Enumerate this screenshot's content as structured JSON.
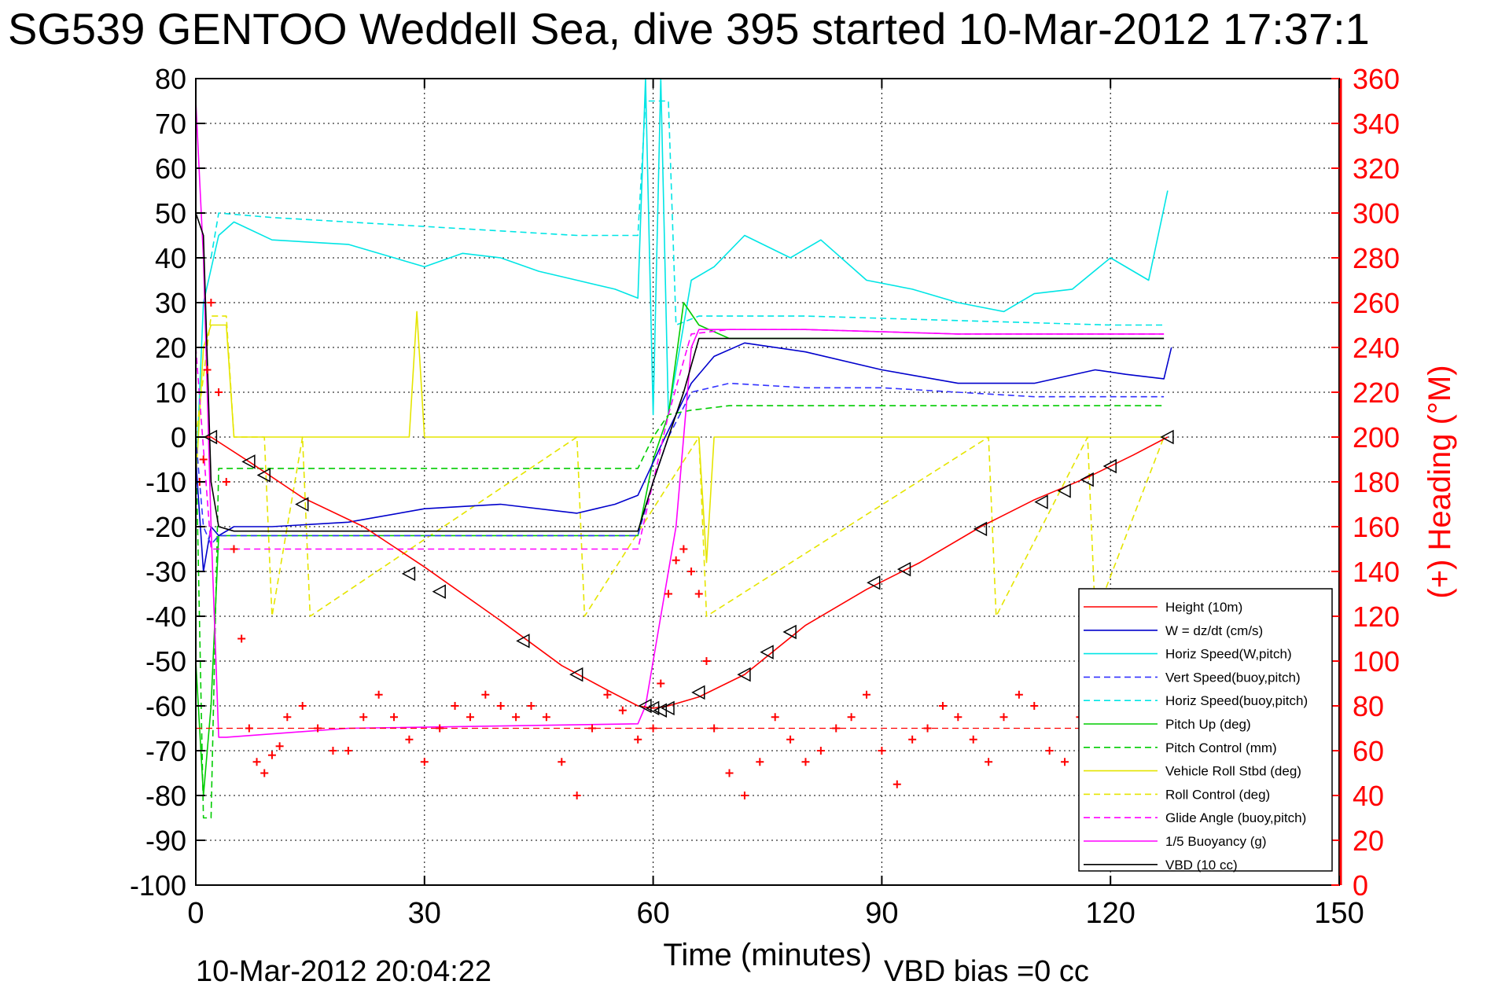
{
  "chart_data": {
    "type": "line",
    "title": "SG539 GENTOO Weddell Sea, dive 395 started 10-Mar-2012 17:37:1",
    "xlabel": "Time (minutes)",
    "ylabel_right": "(+) Heading (°M)",
    "footer_left": "10-Mar-2012 20:04:22",
    "footer_right": "VBD bias =0 cc",
    "xlim": [
      0,
      150
    ],
    "ylim_left": [
      -100,
      80
    ],
    "ylim_right": [
      0,
      360
    ],
    "x_ticks": [
      "0",
      "30",
      "60",
      "90",
      "120",
      "150"
    ],
    "y_ticks_left": [
      "80",
      "70",
      "60",
      "50",
      "40",
      "30",
      "20",
      "10",
      "0",
      "-10",
      "-20",
      "-30",
      "-40",
      "-50",
      "-60",
      "-70",
      "-80",
      "-90",
      "-100"
    ],
    "y_ticks_right": [
      "360",
      "340",
      "320",
      "300",
      "280",
      "260",
      "240",
      "220",
      "200",
      "180",
      "160",
      "140",
      "120",
      "100",
      "80",
      "60",
      "40",
      "20",
      "0"
    ],
    "grid": true,
    "legend_placement": "bottom-right",
    "colors": {
      "red": "#ff0000",
      "blue": "#0000cc",
      "cyan": "#00e5e5",
      "green": "#00cc00",
      "yellow": "#e5e500",
      "magenta": "#ff00ff",
      "black": "#000000"
    },
    "series": [
      {
        "name": "Height (10m)",
        "color": "#ff0000",
        "style": "solid",
        "x": [
          0,
          2,
          7,
          14,
          22,
          30,
          40,
          48,
          54,
          58,
          60,
          62,
          66,
          72,
          80,
          88,
          95,
          103,
          110,
          117,
          123,
          127.5
        ],
        "y": [
          0,
          0,
          -5.5,
          -13.5,
          -20,
          -29,
          -41,
          -51,
          -56.5,
          -60,
          -60.5,
          -60,
          -58,
          -53,
          -42,
          -34,
          -28,
          -20,
          -14,
          -9,
          -4,
          0
        ]
      },
      {
        "name": "W = dz/dt (cm/s)",
        "color": "#0000cc",
        "style": "solid",
        "x": [
          0,
          1,
          2,
          3,
          5,
          10,
          20,
          30,
          40,
          50,
          55,
          58,
          61,
          63,
          65,
          68,
          72,
          80,
          90,
          100,
          110,
          118,
          122,
          127,
          128
        ],
        "y": [
          -5,
          -30,
          -20,
          -22,
          -20,
          -20,
          -19,
          -16,
          -15,
          -17,
          -15,
          -13,
          -2,
          5,
          12,
          18,
          21,
          19,
          15,
          12,
          12,
          15,
          14,
          13,
          20
        ]
      },
      {
        "name": "Horiz Speed(W,pitch)",
        "color": "#00e5e5",
        "style": "solid",
        "x": [
          0,
          1,
          3,
          5,
          10,
          20,
          30,
          35,
          40,
          45,
          50,
          55,
          58,
          59,
          60,
          61,
          62,
          65,
          68,
          72,
          78,
          82,
          88,
          94,
          100,
          106,
          110,
          115,
          120,
          125,
          127.5
        ],
        "y": [
          -10,
          30,
          45,
          48,
          44,
          43,
          38,
          41,
          40,
          37,
          35,
          33,
          31,
          80,
          5,
          80,
          5,
          35,
          38,
          45,
          40,
          44,
          35,
          33,
          30,
          28,
          32,
          33,
          40,
          35,
          55
        ]
      },
      {
        "name": "Vert Speed(buoy,pitch)",
        "color": "#3333ff",
        "style": "dashed",
        "x": [
          0,
          1,
          2,
          3,
          10,
          20,
          30,
          40,
          50,
          58,
          60,
          62,
          65,
          70,
          80,
          90,
          100,
          110,
          120,
          127
        ],
        "y": [
          0,
          -20,
          -24,
          -22,
          -22,
          -22,
          -22,
          -22,
          -22,
          -22,
          -10,
          0,
          10,
          12,
          11,
          11,
          10,
          9,
          9,
          9
        ]
      },
      {
        "name": "Horiz Speed(buoy,pitch)",
        "color": "#00e5e5",
        "style": "dashed",
        "x": [
          2,
          3,
          10,
          20,
          30,
          40,
          50,
          58,
          59,
          62,
          63,
          66,
          80,
          100,
          120,
          127
        ],
        "y": [
          40,
          50,
          49,
          48,
          47,
          46,
          45,
          45,
          75,
          75,
          25,
          27,
          27,
          26,
          25,
          25
        ]
      },
      {
        "name": "Pitch Up (deg)",
        "color": "#00cc00",
        "style": "solid",
        "x": [
          0,
          1,
          2,
          3,
          10,
          20,
          30,
          40,
          50,
          58,
          60,
          62,
          64,
          66,
          70,
          80,
          90,
          100,
          110,
          120,
          127
        ],
        "y": [
          -50,
          -80,
          -60,
          -22,
          -22,
          -22,
          -22,
          -22,
          -22,
          -22,
          -5,
          5,
          30,
          25,
          22,
          22,
          22,
          22,
          22,
          22,
          22
        ]
      },
      {
        "name": "Pitch Control (mm)",
        "color": "#00cc00",
        "style": "dashed",
        "x": [
          0,
          1,
          2,
          3,
          10,
          58,
          60,
          62,
          65,
          70,
          80,
          100,
          127
        ],
        "y": [
          0,
          -85,
          -85,
          -7,
          -7,
          -7,
          0,
          5,
          6,
          7,
          7,
          7,
          7
        ]
      },
      {
        "name": "Vehicle Roll Stbd (deg)",
        "color": "#e5e500",
        "style": "solid",
        "x": [
          0,
          1,
          2,
          3,
          4,
          5,
          10,
          20,
          28,
          29,
          30,
          40,
          50,
          58,
          62,
          64,
          66,
          67,
          68,
          80,
          90,
          100,
          110,
          120,
          127
        ],
        "y": [
          -10,
          20,
          25,
          25,
          25,
          0,
          0,
          0,
          0,
          28,
          0,
          0,
          0,
          0,
          0,
          0,
          0,
          -28,
          0,
          0,
          0,
          0,
          0,
          0,
          0
        ]
      },
      {
        "name": "Roll Control (deg)",
        "color": "#e5e500",
        "style": "dashed",
        "x": [
          0,
          2,
          3,
          4,
          5,
          9,
          10,
          14,
          15,
          50,
          51,
          66,
          67,
          104,
          105,
          117,
          118,
          127
        ],
        "y": [
          0,
          27,
          27,
          27,
          0,
          0,
          -40,
          0,
          -40,
          0,
          -40,
          0,
          -40,
          0,
          -40,
          0,
          -40,
          0
        ]
      },
      {
        "name": "Glide Angle (buoy,pitch)",
        "color": "#ff00ff",
        "style": "dashed",
        "x": [
          0,
          2,
          3,
          10,
          20,
          30,
          40,
          50,
          58,
          60,
          62,
          65,
          70,
          80,
          100,
          120,
          127
        ],
        "y": [
          20,
          -25,
          -25,
          -25,
          -25,
          -25,
          -25,
          -25,
          -25,
          -10,
          5,
          23,
          24,
          24,
          23,
          23,
          23
        ]
      },
      {
        "name": "1/5 Buoyancy (g)",
        "color": "#ff00ff",
        "style": "solid",
        "x": [
          0,
          1,
          2,
          3,
          4,
          20,
          40,
          58,
          59,
          63,
          65,
          66,
          80,
          100,
          120,
          127
        ],
        "y": [
          75,
          40,
          -20,
          -67,
          -67,
          -65,
          -64.5,
          -64,
          -60,
          -20,
          20,
          24,
          24,
          23,
          23,
          23
        ]
      },
      {
        "name": "VBD (10 cc)",
        "color": "#000000",
        "style": "solid",
        "x": [
          0,
          1,
          2,
          3,
          5,
          10,
          20,
          30,
          40,
          50,
          58,
          60,
          62,
          64,
          66,
          70,
          80,
          90,
          100,
          110,
          120,
          127
        ],
        "y": [
          50,
          45,
          -10,
          -20,
          -21,
          -21,
          -21,
          -21,
          -21,
          -21,
          -21,
          -10,
          0,
          10,
          22,
          22,
          22,
          22,
          22,
          22,
          22,
          22
        ]
      }
    ],
    "heading_series": {
      "name": "(+) Heading",
      "axis": "right",
      "marker": "+",
      "color": "#ff0000",
      "x": [
        0.5,
        1,
        1.5,
        2,
        3,
        4,
        5,
        6,
        7,
        8,
        9,
        10,
        11,
        12,
        14,
        16,
        18,
        20,
        22,
        24,
        26,
        28,
        30,
        32,
        34,
        36,
        38,
        40,
        42,
        44,
        46,
        48,
        50,
        52,
        54,
        56,
        58,
        60,
        61,
        62,
        63,
        64,
        65,
        66,
        67,
        68,
        70,
        72,
        74,
        76,
        78,
        80,
        82,
        84,
        86,
        88,
        90,
        92,
        94,
        96,
        98,
        100,
        102,
        104,
        106,
        108,
        110,
        112,
        114,
        116,
        118,
        120,
        122,
        124,
        126,
        127
      ],
      "y": [
        180,
        190,
        230,
        260,
        220,
        180,
        150,
        110,
        70,
        55,
        50,
        58,
        62,
        75,
        80,
        70,
        60,
        60,
        75,
        85,
        75,
        65,
        55,
        70,
        80,
        75,
        85,
        80,
        75,
        80,
        75,
        55,
        40,
        70,
        85,
        78,
        65,
        70,
        90,
        130,
        145,
        150,
        140,
        130,
        100,
        70,
        50,
        40,
        55,
        75,
        65,
        55,
        60,
        70,
        75,
        85,
        60,
        45,
        65,
        70,
        80,
        75,
        65,
        55,
        75,
        85,
        80,
        60,
        55,
        75,
        85,
        70,
        80,
        90,
        85,
        90
      ]
    },
    "markers": {
      "triangle_x": [
        2,
        7,
        9,
        14,
        28,
        32,
        43,
        50,
        59,
        60,
        61,
        62,
        66,
        72,
        75,
        78,
        89,
        93,
        103,
        111,
        114,
        117,
        120,
        127.5
      ],
      "triangle_y": [
        0,
        -5.5,
        -8.5,
        -15,
        -30.5,
        -34.5,
        -45.5,
        -53,
        -60,
        -60.5,
        -61,
        -60.5,
        -57,
        -53,
        -48,
        -43.5,
        -32.5,
        -29.5,
        -20.5,
        -14.5,
        -12,
        -9.5,
        -6.5,
        0
      ]
    }
  }
}
